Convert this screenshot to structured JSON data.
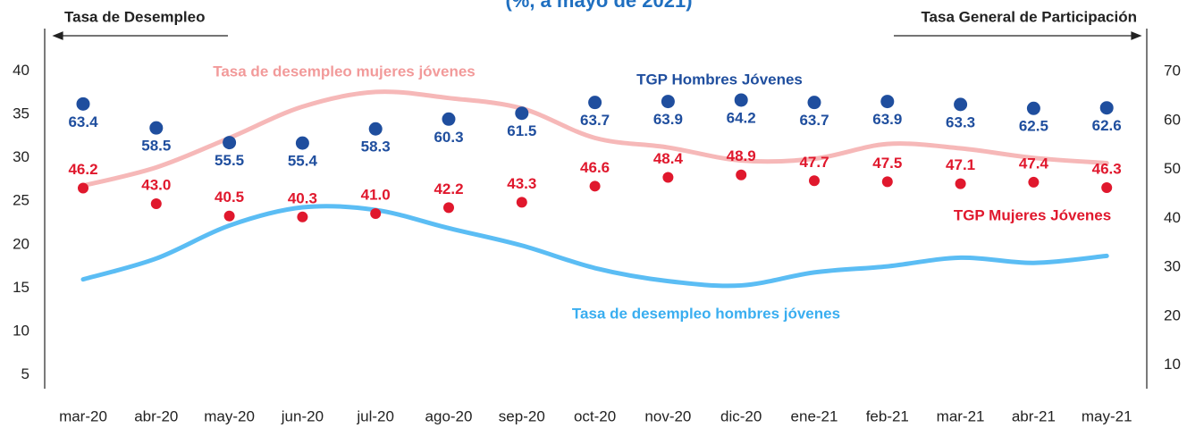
{
  "chart_data": {
    "type": "line",
    "title": "(%, a mayo de 2021)",
    "y_label": "Tasa de Desempleo",
    "y2_label": "Tasa General de Participación",
    "categories": [
      "mar-20",
      "abr-20",
      "may-20",
      "jun-20",
      "jul-20",
      "ago-20",
      "sep-20",
      "oct-20",
      "nov-20",
      "dic-20",
      "ene-21",
      "feb-21",
      "mar-21",
      "abr-21",
      "may-21"
    ],
    "ylim": [
      3.4,
      44.9
    ],
    "yticks": [
      5,
      10,
      15,
      20,
      25,
      30,
      35,
      40
    ],
    "y2lim": [
      5.2,
      78.8
    ],
    "y2ticks": [
      10,
      20,
      30,
      40,
      50,
      60,
      70
    ],
    "series": [
      {
        "name": "Tasa de desempleo mujeres jóvenes",
        "color": "#f6b8b8",
        "values": [
          26.8,
          28.9,
          32.3,
          35.9,
          37.6,
          36.9,
          35.7,
          32.3,
          31.2,
          29.7,
          29.9,
          31.6,
          31.1,
          30.0,
          29.4
        ]
      },
      {
        "name": "Tasa de desempleo hombres jóvenes",
        "color": "#5bbdf4",
        "values": [
          16.0,
          18.4,
          22.2,
          24.3,
          24.0,
          21.9,
          19.9,
          17.3,
          15.8,
          15.3,
          16.8,
          17.5,
          18.5,
          17.9,
          18.7
        ]
      },
      {
        "name": "TGP Hombres Jóvenes",
        "color": "#1f4e9e",
        "axis": "y2",
        "marker": "dot",
        "values": [
          63.4,
          58.5,
          55.5,
          55.4,
          58.3,
          60.3,
          61.5,
          63.7,
          63.9,
          64.2,
          63.7,
          63.9,
          63.3,
          62.5,
          62.6
        ],
        "value_labels": [
          "63.4",
          "58.5",
          "55.5",
          "55.4",
          "58.3",
          "60.3",
          "61.5",
          "63.7",
          "63.9",
          "64.2",
          "63.7",
          "63.9",
          "63.3",
          "62.5",
          "62.6"
        ]
      },
      {
        "name": "TGP Mujeres Jóvenes",
        "color": "#e0182d",
        "axis": "y2",
        "marker": "dot",
        "values": [
          46.2,
          43.0,
          40.5,
          40.3,
          41.0,
          42.2,
          43.3,
          46.6,
          48.4,
          48.9,
          47.7,
          47.5,
          47.1,
          47.4,
          46.3
        ],
        "value_labels": [
          "46.2",
          "43.0",
          "40.5",
          "40.3",
          "41.0",
          "42.2",
          "43.3",
          "46.6",
          "48.4",
          "48.9",
          "47.7",
          "47.5",
          "47.1",
          "47.4",
          "46.3"
        ]
      }
    ]
  }
}
